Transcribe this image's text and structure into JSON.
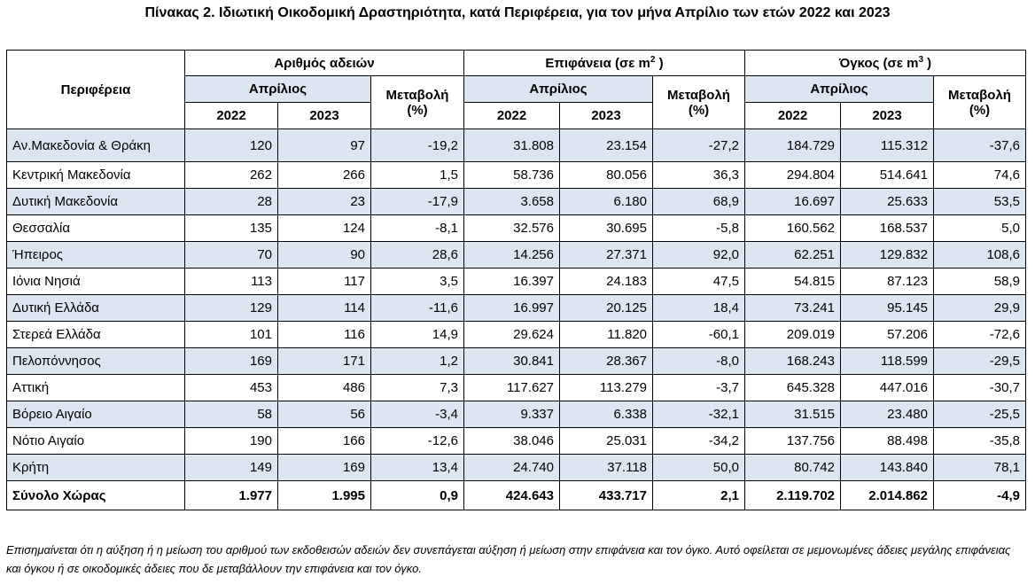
{
  "title": "Πίνακας 2. Ιδιωτική Οικοδομική Δραστηριότητα, κατά  Περιφέρεια, για τον μήνα Απρίλιο των ετών 2022 και 2023",
  "header": {
    "region_col": "Περιφέρεια",
    "groups": [
      {
        "label": "Αριθμός αδειών",
        "unit_pre": "",
        "sup": ""
      },
      {
        "label": "Επιφάνεια",
        "unit_pre": "(σε m",
        "sup": "2",
        "unit_post": " )"
      },
      {
        "label": "Όγκος",
        "unit_pre": "(σε m",
        "sup": "3",
        "unit_post": " )"
      }
    ],
    "month": "Απρίλιος",
    "change_label": "Μεταβολή",
    "change_unit": "(%)",
    "year1": "2022",
    "year2": "2023"
  },
  "rows": [
    {
      "region": "Αν.Μακεδονία & Θράκη",
      "p22": "120",
      "p23": "97",
      "pch": "-19,2",
      "a22": "31.808",
      "a23": "23.154",
      "ach": "-27,2",
      "v22": "184.729",
      "v23": "115.312",
      "vch": "-37,6"
    },
    {
      "region": "Κεντρική Μακεδονία",
      "p22": "262",
      "p23": "266",
      "pch": "1,5",
      "a22": "58.736",
      "a23": "80.056",
      "ach": "36,3",
      "v22": "294.804",
      "v23": "514.641",
      "vch": "74,6"
    },
    {
      "region": "Δυτική Μακεδονία",
      "p22": "28",
      "p23": "23",
      "pch": "-17,9",
      "a22": "3.658",
      "a23": "6.180",
      "ach": "68,9",
      "v22": "16.697",
      "v23": "25.633",
      "vch": "53,5"
    },
    {
      "region": "Θεσσαλία",
      "p22": "135",
      "p23": "124",
      "pch": "-8,1",
      "a22": "32.576",
      "a23": "30.695",
      "ach": "-5,8",
      "v22": "160.562",
      "v23": "168.537",
      "vch": "5,0"
    },
    {
      "region": "Ήπειρος",
      "p22": "70",
      "p23": "90",
      "pch": "28,6",
      "a22": "14.256",
      "a23": "27.371",
      "ach": "92,0",
      "v22": "62.251",
      "v23": "129.832",
      "vch": "108,6"
    },
    {
      "region": "Ιόνια Νησιά",
      "p22": "113",
      "p23": "117",
      "pch": "3,5",
      "a22": "16.397",
      "a23": "24.183",
      "ach": "47,5",
      "v22": "54.815",
      "v23": "87.123",
      "vch": "58,9"
    },
    {
      "region": "Δυτική Ελλάδα",
      "p22": "129",
      "p23": "114",
      "pch": "-11,6",
      "a22": "16.997",
      "a23": "20.125",
      "ach": "18,4",
      "v22": "73.241",
      "v23": "95.145",
      "vch": "29,9"
    },
    {
      "region": "Στερεά Ελλάδα",
      "p22": "101",
      "p23": "116",
      "pch": "14,9",
      "a22": "29.624",
      "a23": "11.820",
      "ach": "-60,1",
      "v22": "209.019",
      "v23": "57.206",
      "vch": "-72,6"
    },
    {
      "region": "Πελοπόννησος",
      "p22": "169",
      "p23": "171",
      "pch": "1,2",
      "a22": "30.841",
      "a23": "28.367",
      "ach": "-8,0",
      "v22": "168.243",
      "v23": "118.599",
      "vch": "-29,5"
    },
    {
      "region": "Αττική",
      "p22": "453",
      "p23": "486",
      "pch": "7,3",
      "a22": "117.627",
      "a23": "113.279",
      "ach": "-3,7",
      "v22": "645.328",
      "v23": "447.016",
      "vch": "-30,7"
    },
    {
      "region": "Βόρειο Αιγαίο",
      "p22": "58",
      "p23": "56",
      "pch": "-3,4",
      "a22": "9.337",
      "a23": "6.338",
      "ach": "-32,1",
      "v22": "31.515",
      "v23": "23.480",
      "vch": "-25,5"
    },
    {
      "region": "Νότιο Αιγαίο",
      "p22": "190",
      "p23": "166",
      "pch": "-12,6",
      "a22": "38.046",
      "a23": "25.031",
      "ach": "-34,2",
      "v22": "137.756",
      "v23": "88.498",
      "vch": "-35,8"
    },
    {
      "region": "Κρήτη",
      "p22": "149",
      "p23": "169",
      "pch": "13,4",
      "a22": "24.740",
      "a23": "37.118",
      "ach": "50,0",
      "v22": "80.742",
      "v23": "143.840",
      "vch": "78,1"
    }
  ],
  "total": {
    "region": "Σύνολο Χώρας",
    "p22": "1.977",
    "p23": "1.995",
    "pch": "0,9",
    "a22": "424.643",
    "a23": "433.717",
    "ach": "2,1",
    "v22": "2.119.702",
    "v23": "2.014.862",
    "vch": "-4,9"
  },
  "note": "Επισημαίνεται ότι η αύξηση ή η μείωση του αριθμού των εκδοθεισών αδειών δεν συνεπάγεται αύξηση ή μείωση στην επιφάνεια και τον όγκο. Αυτό οφείλεται σε μεμονωμένες άδειες μεγάλης επιφάνειας και όγκου ή σε οικοδομικές άδειες που δε μεταβάλλουν την επιφάνεια και τον όγκο.",
  "colors": {
    "row_shade": "#dce6f1",
    "border": "#000000"
  }
}
